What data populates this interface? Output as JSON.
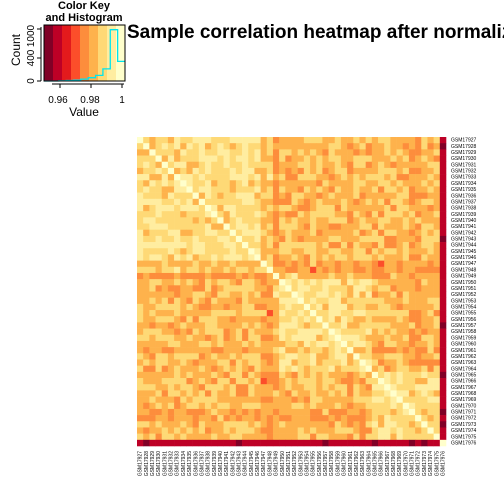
{
  "chart_data": {
    "type": "heatmap",
    "title": "Sample correlation heatmap after normalization",
    "color_key": {
      "title_line1": "Color Key",
      "title_line2": "and Histogram",
      "xlabel": "Value",
      "ylabel": "Count",
      "x_ticks": [
        "0.96",
        "0.98",
        "1"
      ],
      "y_ticks": [
        "0",
        "400",
        "1000"
      ],
      "x_range": [
        0.95,
        1.0
      ],
      "y_range": [
        0,
        1200
      ],
      "palette": [
        "#800026",
        "#bd0026",
        "#e31a1c",
        "#fc4e2a",
        "#fd8d3c",
        "#feb24c",
        "#fed976",
        "#ffeda0",
        "#ffffcc"
      ],
      "histogram_color": "#00e5ee",
      "histogram_counts": [
        0,
        0,
        5,
        10,
        20,
        40,
        70,
        120,
        260,
        1100,
        420
      ]
    },
    "samples": [
      "GSM17927",
      "GSM17928",
      "GSM17929",
      "GSM17930",
      "GSM17931",
      "GSM17932",
      "GSM17933",
      "GSM17934",
      "GSM17935",
      "GSM17936",
      "GSM17937",
      "GSM17938",
      "GSM17939",
      "GSM17940",
      "GSM17941",
      "GSM17942",
      "GSM17943",
      "GSM17944",
      "GSM17945",
      "GSM17946",
      "GSM17947",
      "GSM17948",
      "GSM17949",
      "GSM17950",
      "GSM17951",
      "GSM17952",
      "GSM17953",
      "GSM17954",
      "GSM17955",
      "GSM17956",
      "GSM17957",
      "GSM17958",
      "GSM17959",
      "GSM17960",
      "GSM17961",
      "GSM17962",
      "GSM17963",
      "GSM17964",
      "GSM17965",
      "GSM17966",
      "GSM17967",
      "GSM17968",
      "GSM17969",
      "GSM17970",
      "GSM17971",
      "GSM17972",
      "GSM17973",
      "GSM17974",
      "GSM17975",
      "GSM17976"
    ],
    "value_range": [
      0.95,
      1.0
    ],
    "structure": {
      "block_a": [
        0,
        21
      ],
      "block_b": [
        22,
        37
      ],
      "block_c": [
        38,
        49
      ],
      "low_samples": [
        49
      ],
      "moderate_samples": [
        20,
        21,
        22,
        34,
        44,
        45
      ]
    }
  }
}
